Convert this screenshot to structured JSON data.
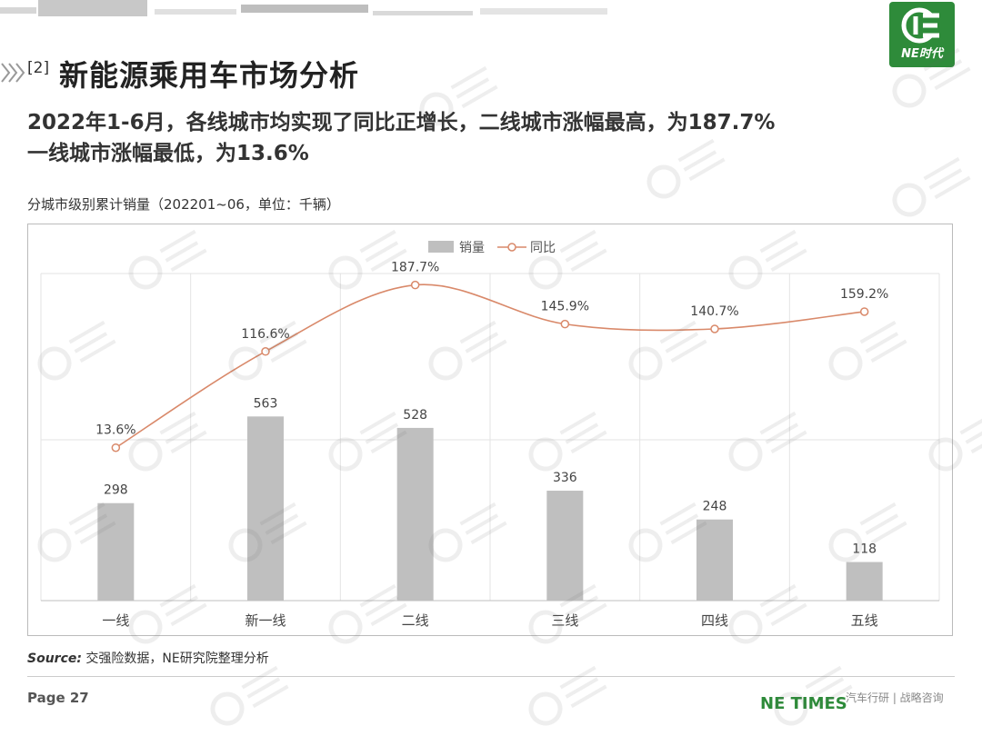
{
  "header": {
    "section_number": "[2]",
    "section_title": "新能源乘用车市场分析",
    "headline_line1": "2022年1-6月，各线城市均实现了同比正增长，二线城市涨幅最高，为187.7%",
    "headline_line2": "一线城市涨幅最低，为13.6%"
  },
  "logo": {
    "text": "NE时代"
  },
  "chart_subtitle": "分城市级别累计销量（202201~06，单位：千辆）",
  "chart_data": {
    "type": "bar",
    "categories": [
      "一线",
      "新一线",
      "二线",
      "三线",
      "四线",
      "五线"
    ],
    "series": [
      {
        "name": "销量",
        "type": "bar",
        "values": [
          298,
          563,
          528,
          336,
          248,
          118
        ]
      },
      {
        "name": "同比",
        "type": "line",
        "values": [
          13.6,
          116.6,
          187.7,
          145.9,
          140.7,
          159.2
        ]
      }
    ],
    "bar_labels": [
      "298",
      "563",
      "528",
      "336",
      "248",
      "118"
    ],
    "line_labels": [
      "13.6%",
      "116.6%",
      "187.7%",
      "145.9%",
      "140.7%",
      "159.2%"
    ],
    "legend_position": "top-center",
    "grid": true,
    "colors": {
      "bar": "#bfbfbf",
      "line": "#d9896a"
    }
  },
  "source": {
    "label": "Source:",
    "text": "交强险数据，NE研究院整理分析"
  },
  "footer": {
    "page": "Page 27",
    "brand": "NE TIMES",
    "slogan": "汽车行研 | 战略咨询"
  }
}
